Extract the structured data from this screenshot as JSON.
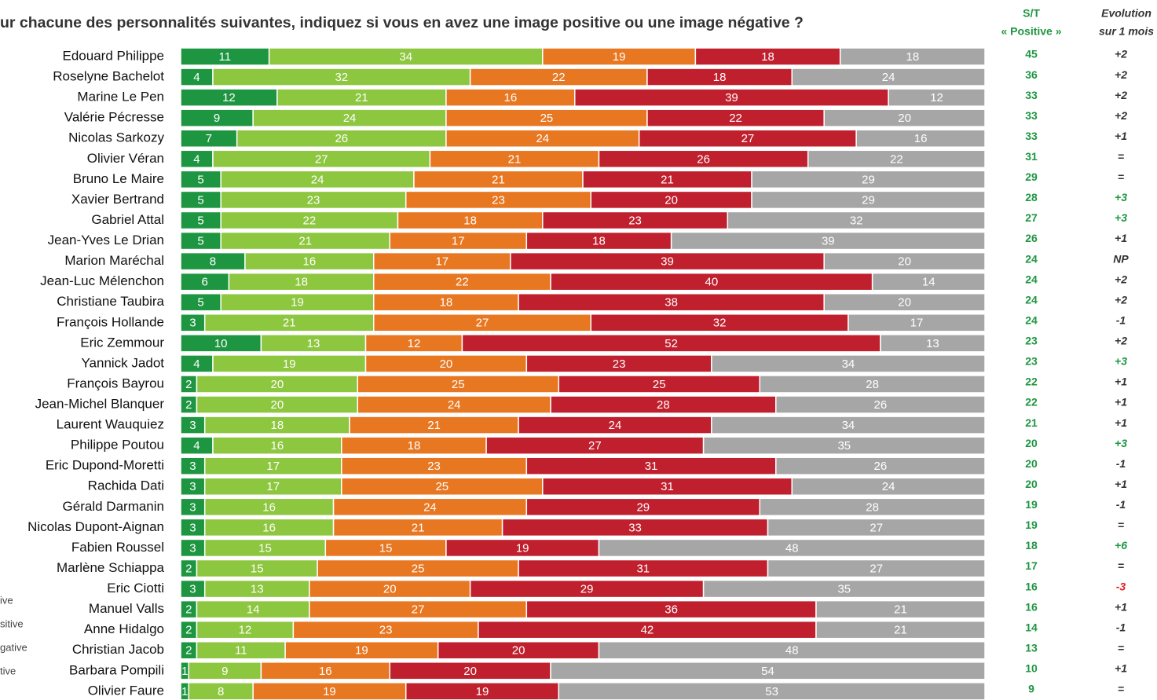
{
  "chart_data": {
    "type": "stacked-bar-horizontal",
    "title": "ur chacune des personnalités suivantes, indiquez si vous en avez une image positive ou une image négative ?",
    "xlim": [
      0,
      100
    ],
    "categories": [
      "Edouard Philippe",
      "Roselyne Bachelot",
      "Marine Le Pen",
      "Valérie Pécresse",
      "Nicolas Sarkozy",
      "Olivier Véran",
      "Bruno Le Maire",
      "Xavier Bertrand",
      "Gabriel Attal",
      "Jean-Yves Le Drian",
      "Marion Maréchal",
      "Jean-Luc Mélenchon",
      "Christiane Taubira",
      "François Hollande",
      "Eric Zemmour",
      "Yannick Jadot",
      "François Bayrou",
      "Jean-Michel Blanquer",
      "Laurent Wauquiez",
      "Philippe Poutou",
      "Eric Dupond-Moretti",
      "Rachida Dati",
      "Gérald Darmanin",
      "Nicolas Dupont-Aignan",
      "Fabien Roussel",
      "Marlène Schiappa",
      "Eric Ciotti",
      "Manuel Valls",
      "Anne Hidalgo",
      "Christian Jacob",
      "Barbara Pompili",
      "Olivier Faure"
    ],
    "series": [
      {
        "name": "ive",
        "color": "#1e9641",
        "values": [
          11,
          4,
          12,
          9,
          7,
          4,
          5,
          5,
          5,
          5,
          8,
          6,
          5,
          3,
          10,
          4,
          2,
          2,
          3,
          4,
          3,
          3,
          3,
          3,
          3,
          2,
          3,
          2,
          2,
          2,
          1,
          1
        ]
      },
      {
        "name": "sitive",
        "color": "#8dc63f",
        "values": [
          34,
          32,
          21,
          24,
          26,
          27,
          24,
          23,
          22,
          21,
          16,
          18,
          19,
          21,
          13,
          19,
          20,
          20,
          18,
          16,
          17,
          17,
          16,
          16,
          15,
          15,
          13,
          14,
          12,
          11,
          9,
          8
        ]
      },
      {
        "name": "gative",
        "color": "#e87722",
        "values": [
          19,
          22,
          16,
          25,
          24,
          21,
          21,
          23,
          18,
          17,
          17,
          22,
          18,
          27,
          12,
          20,
          25,
          24,
          21,
          18,
          23,
          25,
          24,
          21,
          15,
          25,
          20,
          27,
          23,
          19,
          16,
          19
        ]
      },
      {
        "name": "tive",
        "color": "#c0202e",
        "values": [
          18,
          18,
          39,
          22,
          27,
          26,
          21,
          20,
          23,
          18,
          39,
          40,
          38,
          32,
          52,
          23,
          25,
          28,
          24,
          27,
          31,
          31,
          29,
          33,
          19,
          31,
          29,
          36,
          42,
          20,
          20,
          19
        ]
      },
      {
        "color": "#a6a6a6",
        "values": [
          18,
          24,
          12,
          20,
          16,
          22,
          29,
          29,
          32,
          39,
          20,
          14,
          20,
          17,
          13,
          34,
          28,
          26,
          34,
          35,
          26,
          24,
          28,
          27,
          48,
          27,
          35,
          21,
          21,
          48,
          54,
          53
        ]
      }
    ],
    "positive_header": [
      "S/T",
      "« Positive »"
    ],
    "positive": [
      45,
      36,
      33,
      33,
      33,
      31,
      29,
      28,
      27,
      26,
      24,
      24,
      24,
      24,
      23,
      23,
      22,
      22,
      21,
      20,
      20,
      20,
      19,
      19,
      18,
      17,
      16,
      16,
      14,
      13,
      10,
      9
    ],
    "positive_color": "#1e9641",
    "evolution_header": [
      "Evolution",
      "sur 1 mois"
    ],
    "evolution": [
      "+2",
      "+2",
      "+2",
      "+2",
      "+1",
      "=",
      "=",
      "+3",
      "+3",
      "+1",
      "NP",
      "+2",
      "+2",
      "-1",
      "+2",
      "+3",
      "+1",
      "+1",
      "+1",
      "+3",
      "-1",
      "+1",
      "-1",
      "=",
      "+6",
      "=",
      "-3",
      "+1",
      "-1",
      "=",
      "+1",
      "="
    ],
    "evolution_colors": [
      "#333",
      "#333",
      "#333",
      "#333",
      "#333",
      "#333",
      "#333",
      "#1e9641",
      "#1e9641",
      "#333",
      "#333",
      "#333",
      "#333",
      "#333",
      "#333",
      "#1e9641",
      "#333",
      "#333",
      "#333",
      "#1e9641",
      "#333",
      "#333",
      "#333",
      "#333",
      "#1e9641",
      "#333",
      "#e02020",
      "#333",
      "#333",
      "#333",
      "#333",
      "#333"
    ]
  }
}
